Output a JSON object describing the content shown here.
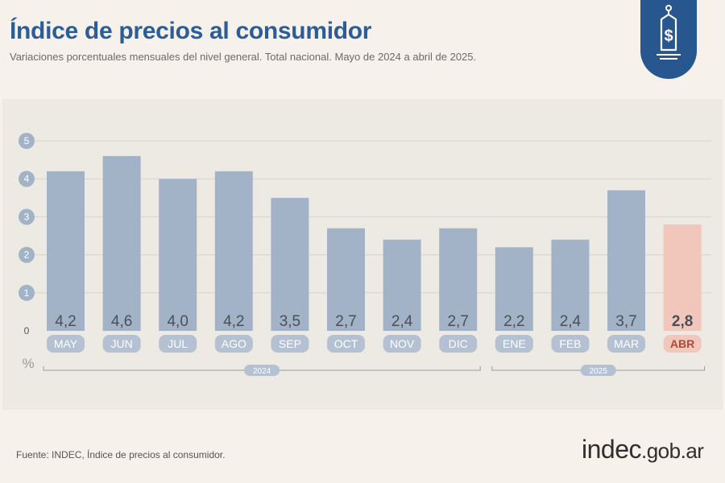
{
  "header": {
    "title": "Índice de precios al consumidor",
    "subtitle": "Variaciones porcentuales mensuales del nivel general. Total nacional. Mayo de 2024 a abril de 2025."
  },
  "badge": {
    "icon": "price-tag-dollar-icon",
    "color": "#28578f"
  },
  "footer": {
    "source": "Fuente: INDEC, Índice de precios al consumidor.",
    "logo_main": "indec",
    "logo_domain": ".gob.ar"
  },
  "colors": {
    "bar": "#a3b3c7",
    "bar_highlight": "#f2c7bb",
    "pill": "#b4c1d2",
    "pill_highlight": "#f2c7bb",
    "value_text": "#4a4f58",
    "tick_circle": "#a3b3c7",
    "title": "#2c5d97"
  },
  "chart_data": {
    "type": "bar",
    "categories": [
      "MAY",
      "JUN",
      "JUL",
      "AGO",
      "SEP",
      "OCT",
      "NOV",
      "DIC",
      "ENE",
      "FEB",
      "MAR",
      "ABR"
    ],
    "values": [
      4.2,
      4.6,
      4.0,
      4.2,
      3.5,
      2.7,
      2.4,
      2.7,
      2.2,
      2.4,
      3.7,
      2.8
    ],
    "value_labels": [
      "4,2",
      "4,6",
      "4,0",
      "4,2",
      "3,5",
      "2,7",
      "2,4",
      "2,7",
      "2,2",
      "2,4",
      "3,7",
      "2,8"
    ],
    "highlight_index": 11,
    "ylim": [
      0,
      5
    ],
    "yticks": [
      "0",
      "1",
      "2",
      "3",
      "4",
      "5"
    ],
    "ylabel": "%",
    "grid": true,
    "year_groups": [
      {
        "label": "2024",
        "start": 0,
        "end": 7
      },
      {
        "label": "2025",
        "start": 8,
        "end": 11
      }
    ]
  }
}
